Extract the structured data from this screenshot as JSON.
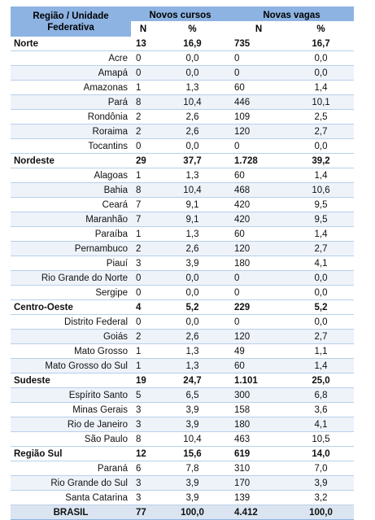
{
  "header": {
    "region_label": "Região / Unidade Federativa",
    "novos_cursos": "Novos cursos",
    "novas_vagas": "Novas vagas",
    "sub": [
      "N",
      "%",
      "N",
      "%"
    ]
  },
  "rows": [
    {
      "type": "region",
      "name": "Norte",
      "n1": "13",
      "p1": "16,9",
      "n2": "735",
      "p2": "16,7"
    },
    {
      "type": "uf",
      "name": "Acre",
      "n1": "0",
      "p1": "0,0",
      "n2": "0",
      "p2": "0,0"
    },
    {
      "type": "uf",
      "name": "Amapá",
      "n1": "0",
      "p1": "0,0",
      "n2": "0",
      "p2": "0,0"
    },
    {
      "type": "uf",
      "name": "Amazonas",
      "n1": "1",
      "p1": "1,3",
      "n2": "60",
      "p2": "1,4"
    },
    {
      "type": "uf",
      "name": "Pará",
      "n1": "8",
      "p1": "10,4",
      "n2": "446",
      "p2": "10,1"
    },
    {
      "type": "uf",
      "name": "Rondônia",
      "n1": "2",
      "p1": "2,6",
      "n2": "109",
      "p2": "2,5"
    },
    {
      "type": "uf",
      "name": "Roraima",
      "n1": "2",
      "p1": "2,6",
      "n2": "120",
      "p2": "2,7"
    },
    {
      "type": "uf",
      "name": "Tocantins",
      "n1": "0",
      "p1": "0,0",
      "n2": "0",
      "p2": "0,0"
    },
    {
      "type": "region",
      "name": "Nordeste",
      "n1": "29",
      "p1": "37,7",
      "n2": "1.728",
      "p2": "39,2"
    },
    {
      "type": "uf",
      "name": "Alagoas",
      "n1": "1",
      "p1": "1,3",
      "n2": "60",
      "p2": "1,4"
    },
    {
      "type": "uf",
      "name": "Bahia",
      "n1": "8",
      "p1": "10,4",
      "n2": "468",
      "p2": "10,6"
    },
    {
      "type": "uf",
      "name": "Ceará",
      "n1": "7",
      "p1": "9,1",
      "n2": "420",
      "p2": "9,5"
    },
    {
      "type": "uf",
      "name": "Maranhão",
      "n1": "7",
      "p1": "9,1",
      "n2": "420",
      "p2": "9,5"
    },
    {
      "type": "uf",
      "name": "Paraíba",
      "n1": "1",
      "p1": "1,3",
      "n2": "60",
      "p2": "1,4"
    },
    {
      "type": "uf",
      "name": "Pernambuco",
      "n1": "2",
      "p1": "2,6",
      "n2": "120",
      "p2": "2,7"
    },
    {
      "type": "uf",
      "name": "Piauí",
      "n1": "3",
      "p1": "3,9",
      "n2": "180",
      "p2": "4,1"
    },
    {
      "type": "uf",
      "name": "Rio Grande do Norte",
      "n1": "0",
      "p1": "0,0",
      "n2": "0",
      "p2": "0,0"
    },
    {
      "type": "uf",
      "name": "Sergipe",
      "n1": "0",
      "p1": "0,0",
      "n2": "0",
      "p2": "0,0"
    },
    {
      "type": "region",
      "name": "Centro-Oeste",
      "n1": "4",
      "p1": "5,2",
      "n2": "229",
      "p2": "5,2"
    },
    {
      "type": "uf",
      "name": "Distrito Federal",
      "n1": "0",
      "p1": "0,0",
      "n2": "0",
      "p2": "0,0"
    },
    {
      "type": "uf",
      "name": "Goiás",
      "n1": "2",
      "p1": "2,6",
      "n2": "120",
      "p2": "2,7"
    },
    {
      "type": "uf",
      "name": "Mato Grosso",
      "n1": "1",
      "p1": "1,3",
      "n2": "49",
      "p2": "1,1"
    },
    {
      "type": "uf",
      "name": "Mato Grosso do Sul",
      "n1": "1",
      "p1": "1,3",
      "n2": "60",
      "p2": "1,4"
    },
    {
      "type": "region",
      "name": "Sudeste",
      "n1": "19",
      "p1": "24,7",
      "n2": "1.101",
      "p2": "25,0"
    },
    {
      "type": "uf",
      "name": "Espírito Santo",
      "n1": "5",
      "p1": "6,5",
      "n2": "300",
      "p2": "6,8"
    },
    {
      "type": "uf",
      "name": "Minas Gerais",
      "n1": "3",
      "p1": "3,9",
      "n2": "158",
      "p2": "3,6"
    },
    {
      "type": "uf",
      "name": "Rio de Janeiro",
      "n1": "3",
      "p1": "3,9",
      "n2": "180",
      "p2": "4,1"
    },
    {
      "type": "uf",
      "name": "São Paulo",
      "n1": "8",
      "p1": "10,4",
      "n2": "463",
      "p2": "10,5"
    },
    {
      "type": "region",
      "name": "Região Sul",
      "n1": "12",
      "p1": "15,6",
      "n2": "619",
      "p2": "14,0"
    },
    {
      "type": "uf",
      "name": "Paraná",
      "n1": "6",
      "p1": "7,8",
      "n2": "310",
      "p2": "7,0"
    },
    {
      "type": "uf",
      "name": "Rio Grande do Sul",
      "n1": "3",
      "p1": "3,9",
      "n2": "170",
      "p2": "3,9"
    },
    {
      "type": "uf",
      "name": "Santa Catarina",
      "n1": "3",
      "p1": "3,9",
      "n2": "139",
      "p2": "3,2"
    },
    {
      "type": "total",
      "name": "BRASIL",
      "n1": "77",
      "p1": "100,0",
      "n2": "4.412",
      "p2": "100,0"
    }
  ],
  "colors": {
    "header_bg": "#8db3e2",
    "row_line": "#b8cfe9",
    "total_bg": "#dbe5f1"
  }
}
